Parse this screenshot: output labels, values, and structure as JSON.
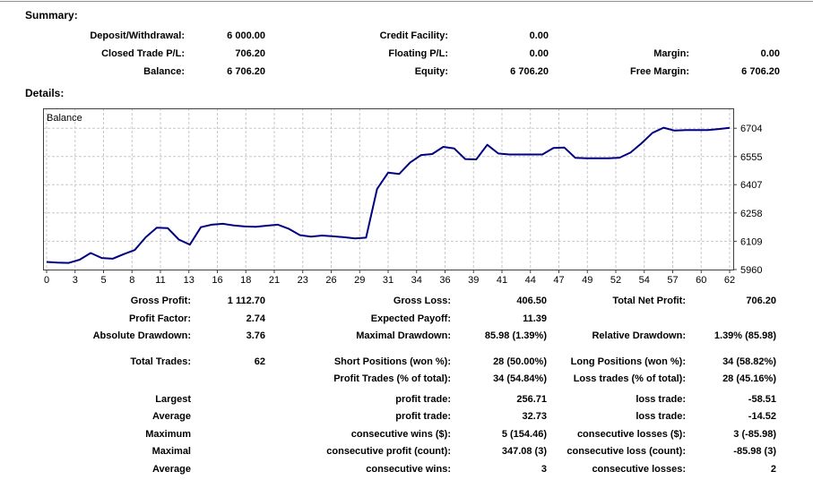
{
  "summary": {
    "heading": "Summary:",
    "rows": [
      [
        "Deposit/Withdrawal:",
        "6 000.00",
        "Credit Facility:",
        "0.00",
        "",
        ""
      ],
      [
        "Closed Trade P/L:",
        "706.20",
        "Floating P/L:",
        "0.00",
        "Margin:",
        "0.00"
      ],
      [
        "Balance:",
        "6 706.20",
        "Equity:",
        "6 706.20",
        "Free Margin:",
        "6 706.20"
      ]
    ]
  },
  "details": {
    "heading": "Details:"
  },
  "chart_data": {
    "type": "line",
    "title": "Balance",
    "legend_label": "Balance",
    "xlabel": "",
    "ylabel": "",
    "x": [
      0,
      1,
      2,
      3,
      4,
      5,
      6,
      7,
      8,
      9,
      10,
      11,
      12,
      13,
      14,
      15,
      16,
      17,
      18,
      19,
      20,
      21,
      22,
      23,
      24,
      25,
      26,
      27,
      28,
      29,
      30,
      31,
      32,
      33,
      34,
      35,
      36,
      37,
      38,
      39,
      40,
      41,
      42,
      43,
      44,
      45,
      46,
      47,
      48,
      49,
      50,
      51,
      52,
      53,
      54,
      55,
      56,
      57,
      58,
      59,
      60,
      61,
      62
    ],
    "values": [
      6000,
      5997,
      5995,
      6012,
      6047,
      6021,
      6017,
      6041,
      6063,
      6130,
      6180,
      6178,
      6118,
      6091,
      6183,
      6196,
      6201,
      6192,
      6187,
      6185,
      6191,
      6196,
      6174,
      6141,
      6133,
      6139,
      6135,
      6130,
      6124,
      6128,
      6385,
      6470,
      6463,
      6524,
      6563,
      6568,
      6606,
      6598,
      6542,
      6540,
      6617,
      6571,
      6566,
      6566,
      6566,
      6566,
      6600,
      6602,
      6548,
      6546,
      6546,
      6546,
      6549,
      6576,
      6625,
      6680,
      6707,
      6692,
      6694,
      6694,
      6694,
      6700,
      6706.2
    ],
    "x_tick_labels": [
      0,
      3,
      5,
      8,
      11,
      13,
      16,
      18,
      21,
      23,
      26,
      29,
      31,
      34,
      36,
      39,
      41,
      44,
      47,
      49,
      52,
      54,
      57,
      60,
      62
    ],
    "y_ticks": [
      6704,
      6555,
      6407,
      6258,
      6109,
      5960
    ],
    "ylim": [
      5960,
      6808.7
    ],
    "xlim": [
      0,
      62
    ],
    "grid": true,
    "legend_position": "top-left-inside",
    "line_color": "#000080",
    "grid_color": "#c8c8c8",
    "border_color": "#404040",
    "start_value": 6000,
    "end_value": 6706.2
  },
  "stats": {
    "groups": [
      {
        "rows": [
          [
            "Gross Profit:",
            "1 112.70",
            "Gross Loss:",
            "406.50",
            "Total Net Profit:",
            "706.20"
          ],
          [
            "Profit Factor:",
            "2.74",
            "Expected Payoff:",
            "11.39",
            "",
            ""
          ],
          [
            "Absolute Drawdown:",
            "3.76",
            "Maximal Drawdown:",
            "85.98 (1.39%)",
            "Relative Drawdown:",
            "1.39% (85.98)"
          ]
        ]
      },
      {
        "rows": [
          [
            "Total Trades:",
            "62",
            "Short Positions (won %):",
            "28 (50.00%)",
            "Long Positions (won %):",
            "34 (58.82%)"
          ],
          [
            "",
            "",
            "Profit Trades (% of total):",
            "34 (54.84%)",
            "Loss trades (% of total):",
            "28 (45.16%)"
          ]
        ]
      },
      {
        "rows": [
          [
            "Largest",
            "",
            "profit trade:",
            "256.71",
            "loss trade:",
            "-58.51"
          ],
          [
            "Average",
            "",
            "profit trade:",
            "32.73",
            "loss trade:",
            "-14.52"
          ],
          [
            "Maximum",
            "",
            "consecutive wins ($):",
            "5 (154.46)",
            "consecutive losses ($):",
            "3 (-85.98)"
          ],
          [
            "Maximal",
            "",
            "consecutive profit (count):",
            "347.08 (3)",
            "consecutive loss (count):",
            "-85.98 (3)"
          ],
          [
            "Average",
            "",
            "consecutive wins:",
            "3",
            "consecutive losses:",
            "2"
          ]
        ]
      }
    ]
  }
}
